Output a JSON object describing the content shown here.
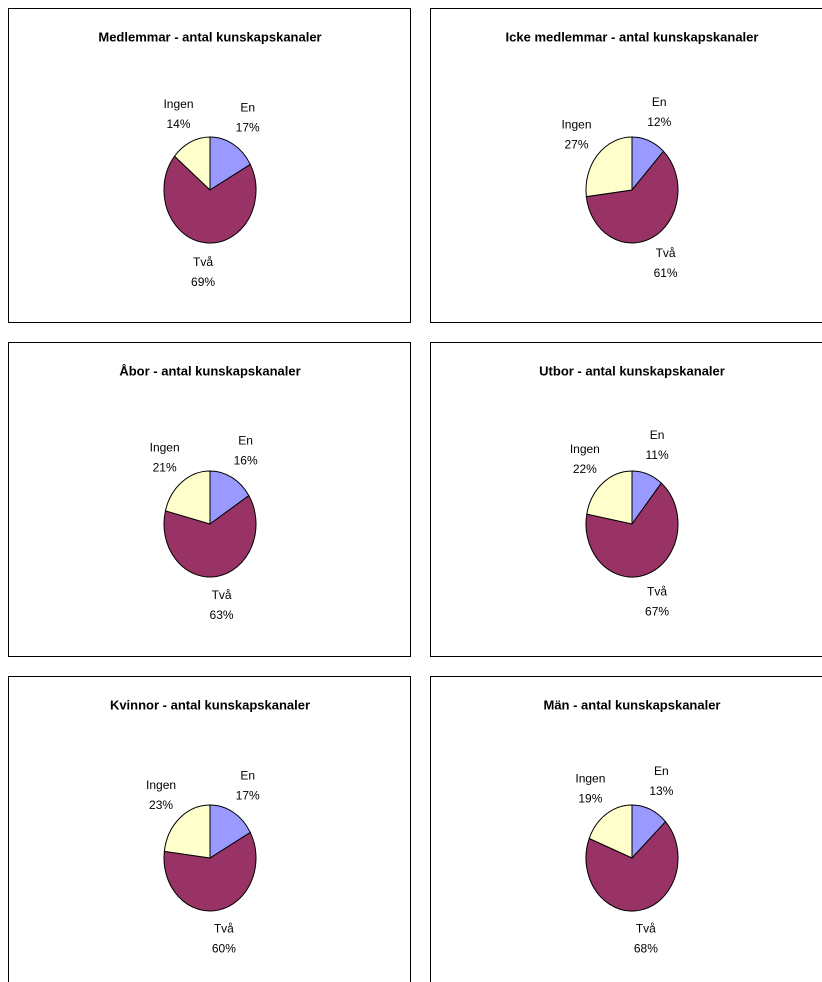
{
  "chart_data": [
    {
      "type": "pie",
      "title": "Medlemmar - antal kunskapskanaler",
      "categories": [
        "En",
        "Två",
        "Ingen"
      ],
      "values": [
        17,
        69,
        14
      ],
      "value_labels": [
        "17%",
        "69%",
        "14%"
      ],
      "colors": [
        "#9999ff",
        "#993366",
        "#ffffcc"
      ]
    },
    {
      "type": "pie",
      "title": "Icke medlemmar - antal kunskapskanaler",
      "categories": [
        "En",
        "Två",
        "Ingen"
      ],
      "values": [
        12,
        61,
        27
      ],
      "value_labels": [
        "12%",
        "61%",
        "27%"
      ],
      "colors": [
        "#9999ff",
        "#993366",
        "#ffffcc"
      ]
    },
    {
      "type": "pie",
      "title": "Åbor - antal kunskapskanaler",
      "categories": [
        "En",
        "Två",
        "Ingen"
      ],
      "values": [
        16,
        63,
        21
      ],
      "value_labels": [
        "16%",
        "63%",
        "21%"
      ],
      "colors": [
        "#9999ff",
        "#993366",
        "#ffffcc"
      ]
    },
    {
      "type": "pie",
      "title": "Utbor - antal kunskapskanaler",
      "categories": [
        "En",
        "Två",
        "Ingen"
      ],
      "values": [
        11,
        67,
        22
      ],
      "value_labels": [
        "11%",
        "67%",
        "22%"
      ],
      "colors": [
        "#9999ff",
        "#993366",
        "#ffffcc"
      ]
    },
    {
      "type": "pie",
      "title": "Kvinnor - antal kunskapskanaler",
      "categories": [
        "En",
        "Två",
        "Ingen"
      ],
      "values": [
        17,
        60,
        23
      ],
      "value_labels": [
        "17%",
        "60%",
        "23%"
      ],
      "colors": [
        "#9999ff",
        "#993366",
        "#ffffcc"
      ]
    },
    {
      "type": "pie",
      "title": "Män - antal kunskapskanaler",
      "categories": [
        "En",
        "Två",
        "Ingen"
      ],
      "values": [
        13,
        68,
        19
      ],
      "value_labels": [
        "13%",
        "68%",
        "19%"
      ],
      "colors": [
        "#9999ff",
        "#993366",
        "#ffffcc"
      ]
    }
  ]
}
